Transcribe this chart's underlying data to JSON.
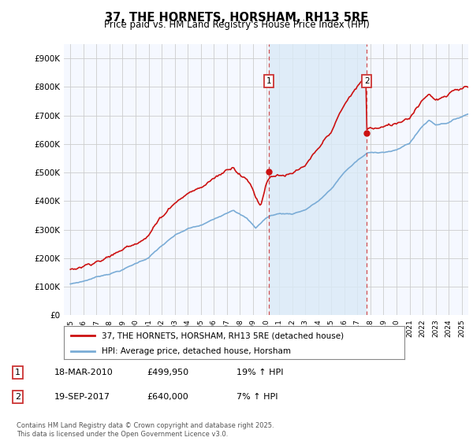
{
  "title": "37, THE HORNETS, HORSHAM, RH13 5RE",
  "subtitle": "Price paid vs. HM Land Registry's House Price Index (HPI)",
  "ylabel_ticks": [
    "£0",
    "£100K",
    "£200K",
    "£300K",
    "£400K",
    "£500K",
    "£600K",
    "£700K",
    "£800K",
    "£900K"
  ],
  "ytick_values": [
    0,
    100000,
    200000,
    300000,
    400000,
    500000,
    600000,
    700000,
    800000,
    900000
  ],
  "ylim": [
    0,
    950000
  ],
  "xlim_start": 1994.5,
  "xlim_end": 2025.5,
  "hpi_color": "#7aacd6",
  "price_color": "#cc1111",
  "marker1_x": 2010.2,
  "marker2_x": 2017.72,
  "marker1_price": 499950,
  "marker2_price": 640000,
  "marker1_hpi": 420000,
  "marker2_hpi": 598000,
  "shade_color": "#daeaf7",
  "legend_line1": "37, THE HORNETS, HORSHAM, RH13 5RE (detached house)",
  "legend_line2": "HPI: Average price, detached house, Horsham",
  "footnote": "Contains HM Land Registry data © Crown copyright and database right 2025.\nThis data is licensed under the Open Government Licence v3.0.",
  "table_row1": [
    "1",
    "18-MAR-2010",
    "£499,950",
    "19% ↑ HPI"
  ],
  "table_row2": [
    "2",
    "19-SEP-2017",
    "£640,000",
    "7% ↑ HPI"
  ],
  "background_color": "#ffffff",
  "plot_bg_color": "#f5f8ff"
}
